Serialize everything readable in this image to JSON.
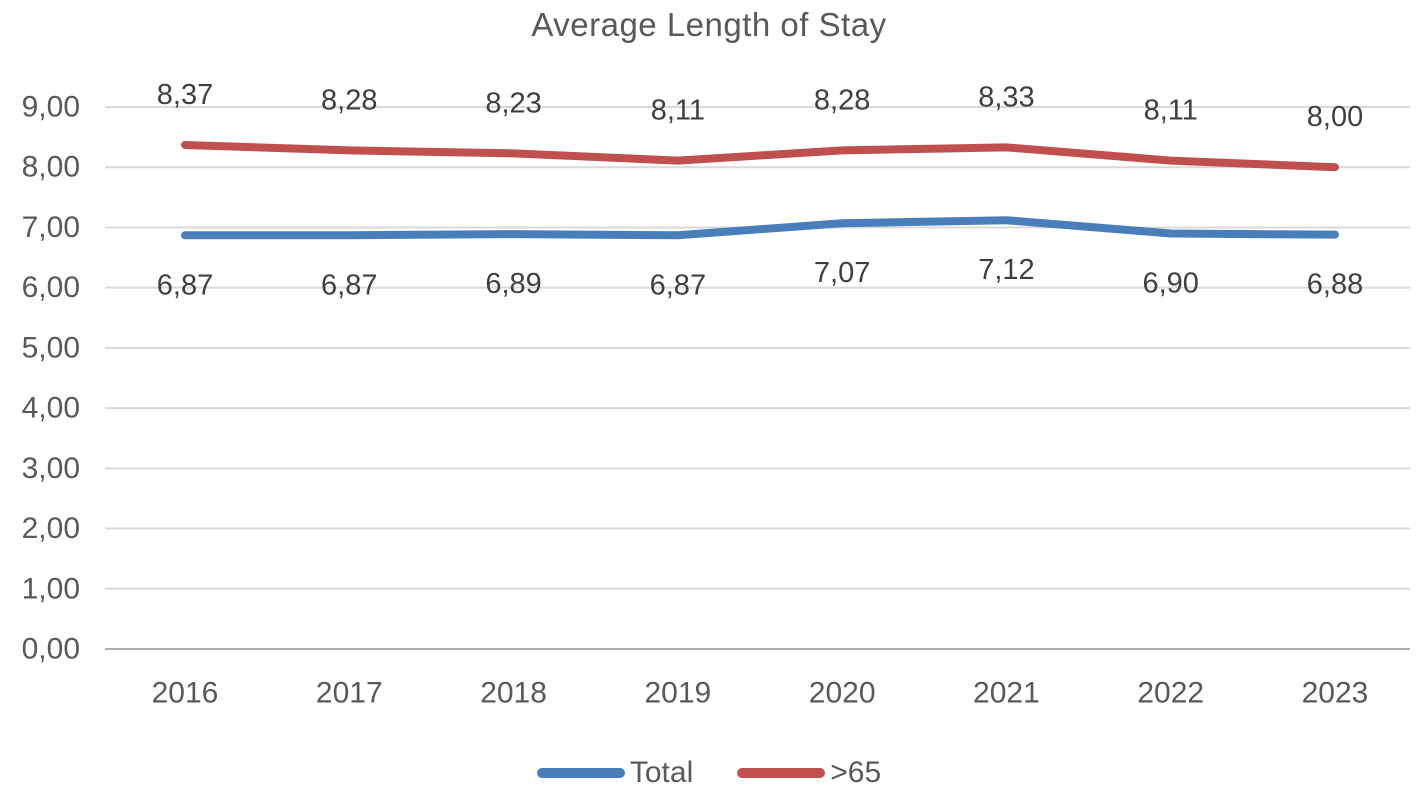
{
  "chart_data": {
    "type": "line",
    "title": "Average Length of Stay",
    "categories": [
      "2016",
      "2017",
      "2018",
      "2019",
      "2020",
      "2021",
      "2022",
      "2023"
    ],
    "series": [
      {
        "key": "total",
        "name": "Total",
        "color": "#4a7ebb",
        "values": [
          6.87,
          6.87,
          6.89,
          6.87,
          7.07,
          7.12,
          6.9,
          6.88
        ],
        "labels": [
          "6,87",
          "6,87",
          "6,89",
          "6,87",
          "7,07",
          "7,12",
          "6,90",
          "6,88"
        ],
        "label_position": "below"
      },
      {
        "key": "gt65",
        "name": ">65",
        "color": "#c0504d",
        "values": [
          8.37,
          8.28,
          8.23,
          8.11,
          8.28,
          8.33,
          8.11,
          8.0
        ],
        "labels": [
          "8,37",
          "8,28",
          "8,23",
          "8,11",
          "8,28",
          "8,33",
          "8,11",
          "8,00"
        ],
        "label_position": "above"
      }
    ],
    "y_axis": {
      "min": 0,
      "max": 9,
      "tick_step": 1,
      "tick_labels": [
        "0,00",
        "1,00",
        "2,00",
        "3,00",
        "4,00",
        "5,00",
        "6,00",
        "7,00",
        "8,00",
        "9,00"
      ]
    },
    "grid": true,
    "legend_position": "bottom",
    "decimal_separator": ",",
    "colors": {
      "total_line": "#4a7ebb",
      "gt65_line": "#c0504d",
      "gridline": "#d9d9d9",
      "axis_line": "#b0b0b0",
      "axis_text": "#595959",
      "title_text": "#595959",
      "data_label_text": "#3f3f3f"
    }
  }
}
